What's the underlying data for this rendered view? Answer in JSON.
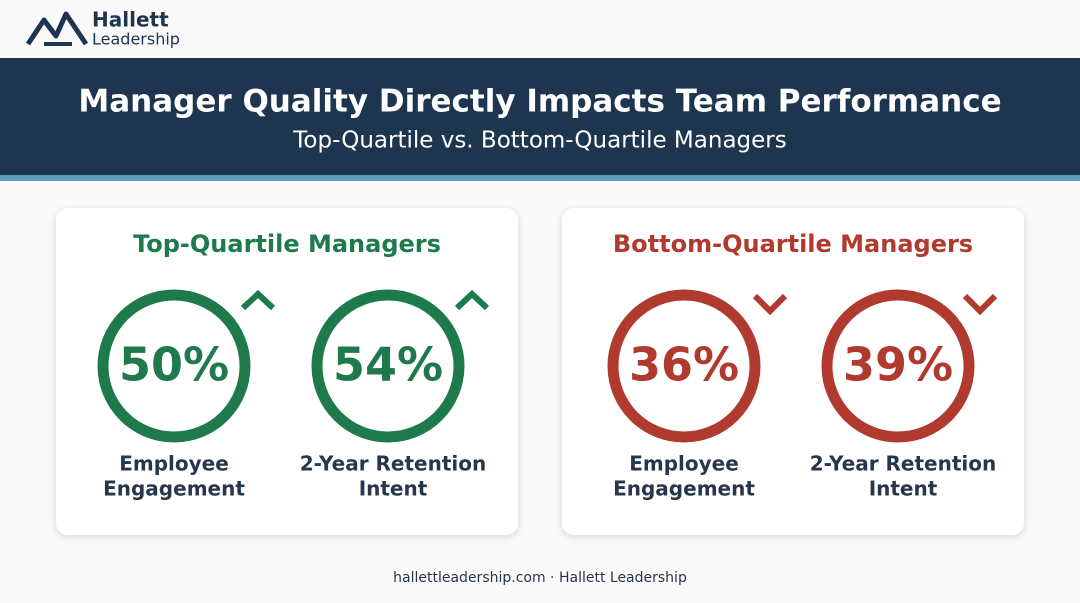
{
  "logo": {
    "name": "Hallett",
    "tagline": "Leadership"
  },
  "header": {
    "title": "Manager Quality Directly Impacts Team Performance",
    "subtitle": "Top-Quartile vs. Bottom-Quartile Managers"
  },
  "cards": [
    {
      "title": "Top-Quartile Managers",
      "stats": [
        {
          "value": "50%",
          "label": [
            "Employee",
            "Engagement"
          ]
        },
        {
          "value": "54%",
          "label": [
            "2-Year Retention",
            "Intent"
          ]
        }
      ]
    },
    {
      "title": "Bottom-Quartile Managers",
      "stats": [
        {
          "value": "36%",
          "label": [
            "Employee",
            "Engagement"
          ]
        },
        {
          "value": "39%",
          "label": [
            "2-Year Retention",
            "Intent"
          ]
        }
      ]
    }
  ],
  "footer": "hallettleadership.com · Hallett Leadership"
}
